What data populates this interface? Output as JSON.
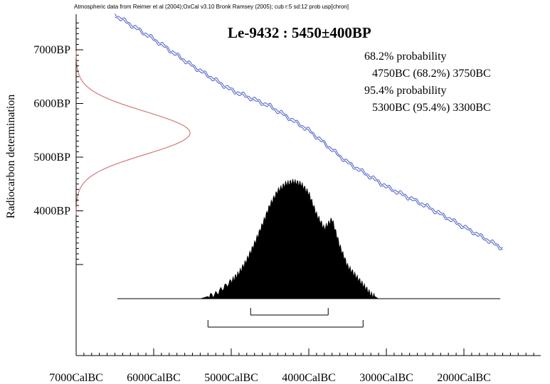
{
  "header": "Atmospheric data from Reimer et al (2004);OxCal v3.10 Bronk Ramsey (2005); cub r:5 sd:12 prob usp[chron]",
  "colors": {
    "calibration_curve": "#4a5cc8",
    "radiocarbon_distribution": "#d27a7a",
    "posterior": "#000000"
  },
  "chart_data": {
    "type": "area",
    "title": "Le-9432 : 5450±400BP",
    "ylabel": "Radiocarbon determination",
    "xlim": [
      7000,
      1000
    ],
    "ylim": [
      2800,
      7700
    ],
    "x_ticks": [
      {
        "value": 7000,
        "label": "7000CalBC"
      },
      {
        "value": 6000,
        "label": "6000CalBC"
      },
      {
        "value": 5000,
        "label": "5000CalBC"
      },
      {
        "value": 4000,
        "label": "4000CalBC"
      },
      {
        "value": 3000,
        "label": "3000CalBC"
      },
      {
        "value": 2000,
        "label": "2000CalBC"
      }
    ],
    "y_ticks": [
      {
        "value": 7000,
        "label": "7000BP"
      },
      {
        "value": 6000,
        "label": "6000BP"
      },
      {
        "value": 5000,
        "label": "5000BP"
      },
      {
        "value": 4000,
        "label": "4000BP"
      }
    ],
    "radiocarbon_measurement": {
      "mean": 5450,
      "sd": 400
    },
    "calibration_curve": {
      "x": [
        6500,
        6000,
        5500,
        5000,
        4500,
        4000,
        3500,
        3000,
        2500,
        2000,
        1500
      ],
      "y": [
        7650,
        7200,
        6700,
        6250,
        5950,
        5500,
        4900,
        4450,
        4100,
        3700,
        3300
      ]
    },
    "probability_distribution": {
      "x": [
        5400,
        5200,
        5000,
        4900,
        4800,
        4700,
        4600,
        4500,
        4400,
        4300,
        4200,
        4100,
        4000,
        3900,
        3800,
        3700,
        3600,
        3500,
        3400,
        3300,
        3200,
        3100
      ],
      "y": [
        0.0,
        0.04,
        0.15,
        0.22,
        0.33,
        0.47,
        0.63,
        0.8,
        0.92,
        0.98,
        1.0,
        0.98,
        0.9,
        0.72,
        0.6,
        0.68,
        0.45,
        0.28,
        0.2,
        0.12,
        0.04,
        0.0
      ]
    },
    "ranges": [
      {
        "heading": "68.2% probability",
        "text": "4750BC (68.2%) 3750BC",
        "from": 4750,
        "to": 3750
      },
      {
        "heading": "95.4% probability",
        "text": "5300BC (95.4%) 3300BC",
        "from": 5300,
        "to": 3300
      }
    ]
  }
}
